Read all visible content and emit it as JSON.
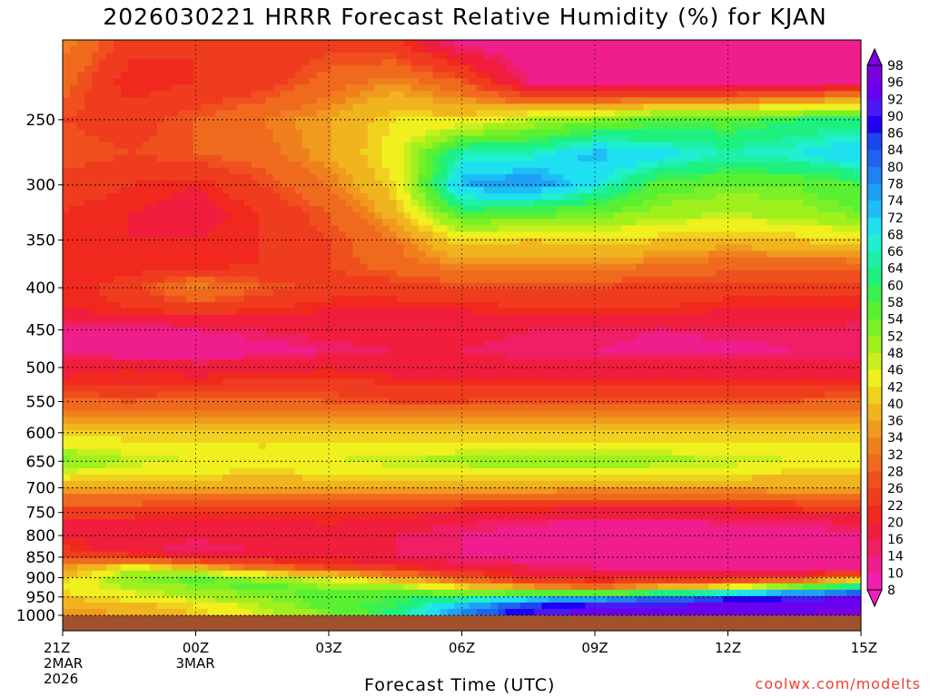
{
  "title": "2026030221 HRRR Forecast Relative Humidity (%) for KJAN",
  "credit": "coolwx.com/modelts",
  "chart_data": {
    "type": "heatmap",
    "title": "2026030221 HRRR Forecast Relative Humidity (%) for KJAN",
    "xlabel": "Forecast Time (UTC)",
    "ylabel": "",
    "x_ticks": [
      {
        "label": "21Z",
        "sub": [
          "2MAR",
          "2026"
        ],
        "hour": 0
      },
      {
        "label": "00Z",
        "sub": [
          "3MAR"
        ],
        "hour": 3
      },
      {
        "label": "03Z",
        "sub": [],
        "hour": 6
      },
      {
        "label": "06Z",
        "sub": [],
        "hour": 9
      },
      {
        "label": "09Z",
        "sub": [],
        "hour": 12
      },
      {
        "label": "12Z",
        "sub": [],
        "hour": 15
      },
      {
        "label": "15Z",
        "sub": [],
        "hour": 18
      }
    ],
    "xlim": [
      0,
      18
    ],
    "y_levels": [
      "250",
      "300",
      "350",
      "400",
      "450",
      "500",
      "550",
      "600",
      "650",
      "700",
      "750",
      "800",
      "850",
      "900",
      "950",
      "1000"
    ],
    "ylim": [
      200,
      1000
    ],
    "y_scale": "log",
    "grid": true,
    "colorbar_labels": [
      "98",
      "96",
      "92",
      "90",
      "86",
      "84",
      "80",
      "78",
      "74",
      "72",
      "68",
      "66",
      "64",
      "60",
      "58",
      "54",
      "52",
      "48",
      "46",
      "42",
      "40",
      "36",
      "34",
      "32",
      "28",
      "26",
      "22",
      "20",
      "16",
      "14",
      "10",
      "8"
    ],
    "colorbar_colors": [
      "#7a00e0",
      "#6a00f0",
      "#4a1af5",
      "#2000f0",
      "#1e46f0",
      "#1e64f0",
      "#1e82f0",
      "#1ea0f5",
      "#1ebef5",
      "#1ee0f0",
      "#1ef0d0",
      "#1ef0a8",
      "#1ef080",
      "#3cf050",
      "#5af032",
      "#7af028",
      "#a0f01e",
      "#c8f01e",
      "#f0f01e",
      "#f0d21e",
      "#f0b41e",
      "#f09a1e",
      "#f0801e",
      "#f06a1e",
      "#f0501e",
      "#f03c1e",
      "#f0281e",
      "#f01e3c",
      "#f01e64",
      "#f01e8c",
      "#f01eb4"
    ],
    "colorbar_placement": "right",
    "ground_color": "#a0522d",
    "rh_grid": {
      "hours": [
        0,
        1.5,
        3,
        4.5,
        6,
        7.5,
        9,
        10.5,
        12,
        13.5,
        15,
        16.5,
        18
      ],
      "levels": [
        200,
        225,
        250,
        275,
        300,
        325,
        350,
        375,
        400,
        425,
        450,
        475,
        500,
        525,
        550,
        575,
        600,
        625,
        650,
        675,
        700,
        725,
        750,
        775,
        800,
        825,
        850,
        875,
        900,
        925,
        950,
        975,
        1000
      ],
      "values": [
        [
          34,
          24,
          22,
          22,
          24,
          22,
          12,
          10,
          10,
          10,
          12,
          12,
          12
        ],
        [
          30,
          20,
          22,
          24,
          30,
          34,
          28,
          14,
          12,
          12,
          12,
          12,
          14
        ],
        [
          26,
          24,
          28,
          32,
          36,
          42,
          42,
          48,
          52,
          56,
          56,
          60,
          62
        ],
        [
          28,
          26,
          28,
          30,
          36,
          44,
          66,
          66,
          74,
          70,
          66,
          68,
          72
        ],
        [
          24,
          22,
          20,
          26,
          32,
          42,
          74,
          78,
          68,
          56,
          54,
          54,
          58
        ],
        [
          22,
          20,
          18,
          22,
          28,
          38,
          58,
          56,
          54,
          50,
          48,
          50,
          54
        ],
        [
          20,
          20,
          20,
          22,
          26,
          32,
          42,
          40,
          42,
          40,
          38,
          40,
          42
        ],
        [
          20,
          20,
          20,
          22,
          26,
          30,
          34,
          34,
          34,
          32,
          30,
          30,
          30
        ],
        [
          20,
          24,
          34,
          28,
          24,
          24,
          26,
          26,
          26,
          24,
          24,
          24,
          24
        ],
        [
          20,
          22,
          24,
          22,
          20,
          20,
          20,
          22,
          22,
          22,
          20,
          20,
          20
        ],
        [
          12,
          12,
          14,
          16,
          18,
          20,
          18,
          16,
          16,
          14,
          16,
          16,
          14
        ],
        [
          12,
          10,
          10,
          12,
          14,
          16,
          16,
          14,
          14,
          12,
          12,
          14,
          14
        ],
        [
          18,
          20,
          18,
          18,
          20,
          18,
          18,
          18,
          18,
          18,
          18,
          18,
          18
        ],
        [
          22,
          22,
          22,
          24,
          24,
          22,
          22,
          22,
          22,
          22,
          22,
          22,
          22
        ],
        [
          30,
          28,
          30,
          30,
          28,
          26,
          26,
          28,
          28,
          28,
          28,
          28,
          30
        ],
        [
          34,
          34,
          34,
          34,
          34,
          34,
          34,
          34,
          34,
          34,
          34,
          34,
          34
        ],
        [
          40,
          40,
          40,
          40,
          40,
          40,
          40,
          40,
          40,
          40,
          40,
          40,
          40
        ],
        [
          46,
          44,
          44,
          42,
          44,
          44,
          44,
          44,
          44,
          44,
          44,
          44,
          44
        ],
        [
          54,
          48,
          46,
          44,
          46,
          48,
          50,
          52,
          52,
          50,
          48,
          46,
          46
        ],
        [
          44,
          42,
          42,
          40,
          42,
          42,
          42,
          42,
          42,
          42,
          42,
          40,
          40
        ],
        [
          36,
          36,
          36,
          36,
          36,
          36,
          36,
          36,
          36,
          36,
          36,
          36,
          36
        ],
        [
          30,
          30,
          28,
          28,
          28,
          28,
          28,
          28,
          26,
          26,
          26,
          28,
          28
        ],
        [
          24,
          24,
          22,
          22,
          22,
          22,
          20,
          18,
          18,
          18,
          18,
          20,
          22
        ],
        [
          18,
          18,
          18,
          18,
          20,
          18,
          16,
          14,
          12,
          12,
          14,
          14,
          16
        ],
        [
          20,
          20,
          18,
          20,
          20,
          16,
          14,
          12,
          12,
          12,
          12,
          12,
          14
        ],
        [
          22,
          16,
          14,
          16,
          18,
          16,
          14,
          12,
          12,
          12,
          12,
          12,
          14
        ],
        [
          26,
          24,
          20,
          18,
          18,
          16,
          14,
          12,
          12,
          12,
          12,
          12,
          12
        ],
        [
          34,
          44,
          38,
          30,
          26,
          22,
          18,
          16,
          14,
          14,
          12,
          12,
          14
        ],
        [
          40,
          52,
          56,
          50,
          44,
          36,
          28,
          20,
          18,
          18,
          20,
          22,
          34
        ],
        [
          44,
          48,
          52,
          56,
          52,
          50,
          42,
          36,
          32,
          38,
          44,
          56,
          66
        ],
        [
          40,
          44,
          48,
          52,
          56,
          58,
          62,
          68,
          72,
          78,
          84,
          90,
          92
        ],
        [
          36,
          38,
          42,
          48,
          56,
          60,
          74,
          86,
          92,
          92,
          94,
          94,
          96
        ],
        [
          34,
          36,
          40,
          46,
          52,
          62,
          80,
          92,
          94,
          94,
          96,
          96,
          98
        ]
      ]
    }
  }
}
